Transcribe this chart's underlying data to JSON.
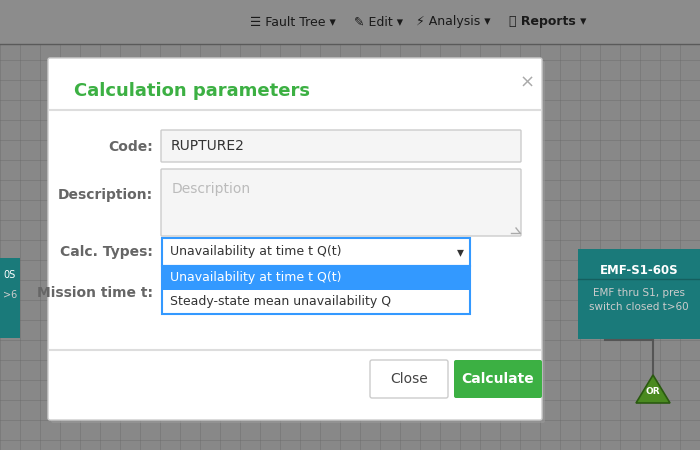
{
  "bg_color": "#888888",
  "dialog_bg": "#ffffff",
  "dialog_title": "Calculation parameters",
  "dialog_title_color": "#3cb043",
  "code_label": "Code:",
  "code_value": "RUPTURE2",
  "desc_label": "Description:",
  "desc_placeholder": "Description",
  "calc_label": "Calc. Types:",
  "calc_value": "Unavailability at time t Q(t)",
  "mission_label": "Mission time t:",
  "dropdown_option1": "Unavailability at time t Q(t)",
  "dropdown_option2": "Steady-state mean unavailability Q",
  "btn_close": "Close",
  "btn_calculate": "Calculate",
  "btn_close_color": "#ffffff",
  "btn_calc_color": "#3cb043",
  "selected_dropdown_bg": "#3399ff",
  "emf_box_color": "#1a7a7a",
  "emf_title": "EMF-S1-60S",
  "emf_desc": "EMF thru S1, pres\nswitch closed t>60",
  "or_gate_color": "#4a8a20",
  "separator_color": "#dddddd",
  "input_bg": "#f5f5f5",
  "input_border": "#cccccc",
  "dropdown_border": "#3399ff",
  "close_x_color": "#aaaaaa",
  "label_color": "#666666"
}
